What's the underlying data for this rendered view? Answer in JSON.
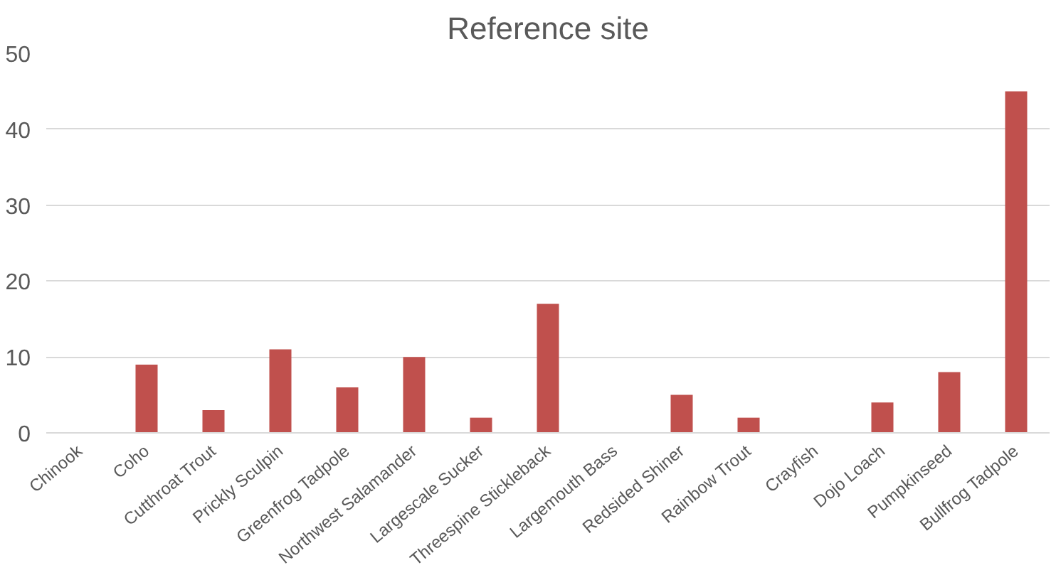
{
  "chart_data": {
    "type": "bar",
    "title": "Reference site",
    "categories": [
      "Chinook",
      "Coho",
      "Cutthroat Trout",
      "Prickly Sculpin",
      "Greenfrog Tadpole",
      "Northwest Salamander",
      "Largescale Sucker",
      "Threespine Stickleback",
      "Largemouth Bass",
      "Redsided Shiner",
      "Rainbow Trout",
      "Crayfish",
      "Dojo Loach",
      "Pumpkinseed",
      "Bullfrog Tadpole"
    ],
    "values": [
      0,
      9,
      3,
      11,
      6,
      10,
      2,
      17,
      0,
      5,
      2,
      0,
      4,
      8,
      45
    ],
    "color": "#c0504d",
    "ylim": [
      0,
      50
    ],
    "yticks": [
      0,
      10,
      20,
      30,
      40,
      50
    ],
    "grid": "y"
  }
}
